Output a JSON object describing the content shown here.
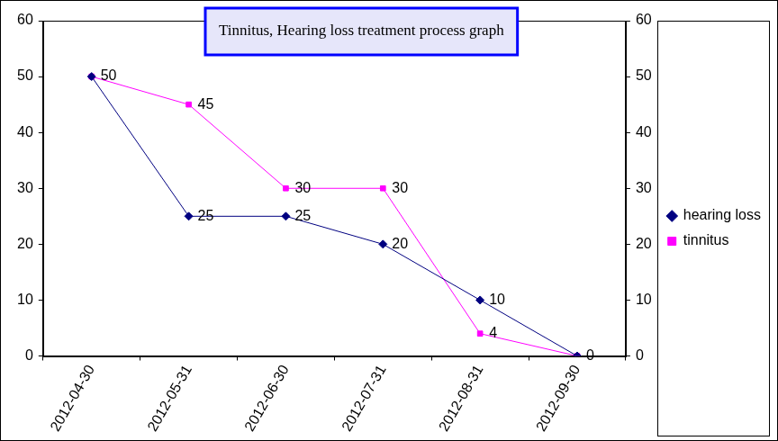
{
  "chart_data": {
    "type": "line",
    "title": "Tinnitus, Hearing loss treatment process graph",
    "categories": [
      "2012-04-30",
      "2012-05-31",
      "2012-06-30",
      "2012-07-31",
      "2012-08-31",
      "2012-09-30"
    ],
    "series": [
      {
        "name": "tinnitus",
        "color": "#ff00ff",
        "marker": "square",
        "values": [
          50,
          45,
          30,
          30,
          4,
          0
        ]
      },
      {
        "name": "hearing loss",
        "color": "#000080",
        "marker": "diamond",
        "values": [
          50,
          25,
          25,
          20,
          10,
          0
        ]
      }
    ],
    "ylim": [
      0,
      60
    ],
    "yticks": [
      0,
      10,
      20,
      30,
      40,
      50,
      60
    ],
    "y2lim": [
      0,
      60
    ],
    "y2ticks": [
      0,
      10,
      20,
      30,
      40,
      50,
      60
    ],
    "grid": false,
    "legend": "right",
    "data_labels": true
  }
}
